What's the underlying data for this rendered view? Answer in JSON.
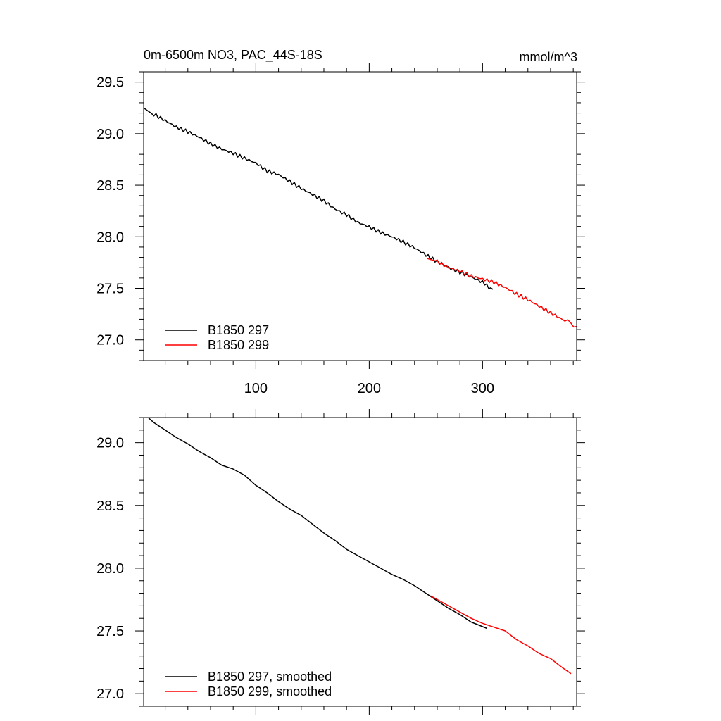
{
  "chart_data": [
    {
      "type": "line",
      "title_left": "0m-6500m NO3, PAC_44S-18S",
      "title_right": "mmol/m^3",
      "xlim": [
        1,
        383
      ],
      "ylim": [
        26.8,
        29.6
      ],
      "xticks": [
        100,
        200,
        300
      ],
      "xtick_labels": [
        "100",
        "200",
        "300"
      ],
      "yticks": [
        27.0,
        27.5,
        28.0,
        28.5,
        29.0,
        29.5
      ],
      "ytick_labels": [
        "27.0",
        "27.5",
        "28.0",
        "28.5",
        "29.0",
        "29.5"
      ],
      "legend_position": "bottom-left",
      "series": [
        {
          "name": "B1850 297",
          "color": "#000000",
          "x": [
            1,
            10,
            20,
            30,
            40,
            50,
            60,
            70,
            80,
            90,
            100,
            110,
            120,
            130,
            140,
            150,
            160,
            170,
            180,
            190,
            200,
            210,
            220,
            230,
            240,
            250,
            260,
            270,
            280,
            290,
            300,
            309
          ],
          "y": [
            29.25,
            29.18,
            29.12,
            29.06,
            29.02,
            28.97,
            28.91,
            28.86,
            28.82,
            28.77,
            28.72,
            28.64,
            28.6,
            28.53,
            28.46,
            28.4,
            28.34,
            28.26,
            28.21,
            28.14,
            28.1,
            28.05,
            28.01,
            27.96,
            27.9,
            27.83,
            27.76,
            27.7,
            27.65,
            27.6,
            27.55,
            27.49
          ]
        },
        {
          "name": "B1850 299",
          "color": "#ff0000",
          "x": [
            251,
            260,
            270,
            280,
            290,
            300,
            310,
            320,
            330,
            340,
            350,
            360,
            370,
            383
          ],
          "y": [
            27.79,
            27.76,
            27.7,
            27.66,
            27.61,
            27.58,
            27.55,
            27.5,
            27.44,
            27.39,
            27.33,
            27.27,
            27.21,
            27.13
          ]
        }
      ]
    },
    {
      "type": "line",
      "xlim": [
        1,
        383
      ],
      "ylim": [
        26.9,
        29.2
      ],
      "xticks": [
        100,
        200,
        300
      ],
      "yticks": [
        27.0,
        27.5,
        28.0,
        28.5,
        29.0
      ],
      "ytick_labels": [
        "27.0",
        "27.5",
        "28.0",
        "28.5",
        "29.0"
      ],
      "legend_position": "bottom-left",
      "series": [
        {
          "name": "B1850 297, smoothed",
          "color": "#000000",
          "x": [
            5,
            10,
            20,
            30,
            40,
            50,
            60,
            70,
            80,
            90,
            100,
            110,
            120,
            130,
            140,
            150,
            160,
            170,
            180,
            190,
            200,
            210,
            220,
            230,
            240,
            250,
            260,
            270,
            280,
            290,
            304
          ],
          "y": [
            29.2,
            29.16,
            29.1,
            29.04,
            28.99,
            28.93,
            28.88,
            28.82,
            28.79,
            28.74,
            28.66,
            28.6,
            28.53,
            28.47,
            28.42,
            28.35,
            28.28,
            28.22,
            28.15,
            28.1,
            28.05,
            28.0,
            27.95,
            27.91,
            27.86,
            27.8,
            27.74,
            27.68,
            27.63,
            27.57,
            27.52
          ]
        },
        {
          "name": "B1850 299, smoothed",
          "color": "#ff0000",
          "x": [
            254,
            260,
            270,
            280,
            290,
            300,
            310,
            320,
            330,
            340,
            350,
            360,
            370,
            378
          ],
          "y": [
            27.78,
            27.75,
            27.7,
            27.65,
            27.6,
            27.56,
            27.53,
            27.5,
            27.43,
            27.38,
            27.32,
            27.28,
            27.21,
            27.16
          ]
        }
      ]
    }
  ]
}
